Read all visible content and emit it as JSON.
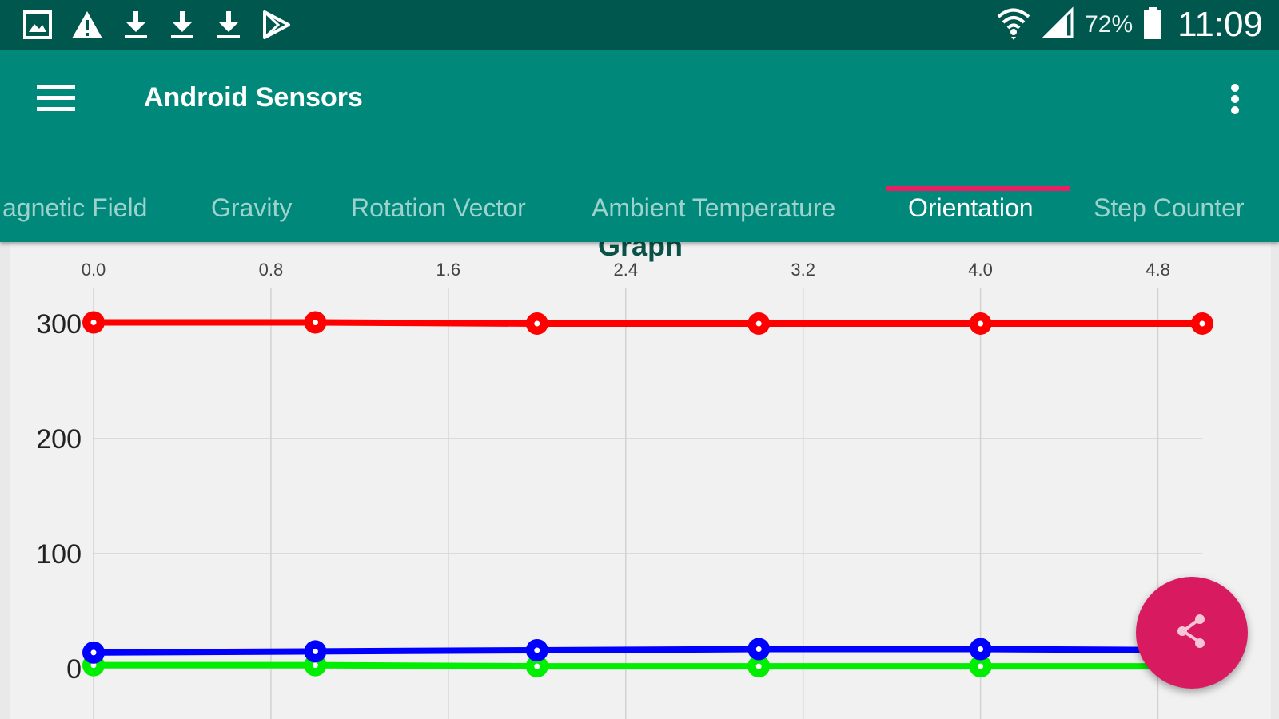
{
  "status_bar": {
    "left_icons": [
      "gallery-icon",
      "warning-icon",
      "download-icon",
      "download-icon",
      "download-icon",
      "play-store-icon"
    ],
    "right_icons": [
      "wifi-icon",
      "signal-icon",
      "battery-icon"
    ],
    "battery_percent": "72%",
    "time": "11:09"
  },
  "toolbar": {
    "menu_icon": "hamburger-menu-icon",
    "title": "Android Sensors",
    "overflow_icon": "more-vert-icon",
    "background": "#00897b"
  },
  "tabs": [
    {
      "label": "agnetic Field",
      "active": false
    },
    {
      "label": "Gravity",
      "active": false
    },
    {
      "label": "Rotation Vector",
      "active": false
    },
    {
      "label": "Ambient Temperature",
      "active": false
    },
    {
      "label": "Orientation",
      "active": true
    },
    {
      "label": "Step Counter",
      "active": false
    }
  ],
  "graph": {
    "title": "Graph"
  },
  "chart_data": {
    "type": "line",
    "title": "Graph",
    "x_tick_labels": [
      "0.0",
      "0.8",
      "1.6",
      "2.4",
      "3.2",
      "4.0",
      "4.8"
    ],
    "y_tick_labels": [
      "300",
      "200",
      "100",
      "0"
    ],
    "x": [
      0.0,
      1.0,
      2.0,
      3.0,
      4.0,
      5.0
    ],
    "xlim": [
      0.0,
      5.0
    ],
    "ylim": [
      0,
      300
    ],
    "grid": true,
    "series": [
      {
        "color": "#ff0000",
        "values": [
          301,
          301,
          300,
          300,
          300,
          300
        ]
      },
      {
        "color": "#0000ff",
        "values": [
          14,
          15,
          16,
          17,
          17,
          16
        ]
      },
      {
        "color": "#00ee00",
        "values": [
          3,
          3,
          2,
          2,
          2,
          2
        ]
      }
    ]
  },
  "fab": {
    "icon": "share-icon",
    "color": "#d81b60"
  }
}
